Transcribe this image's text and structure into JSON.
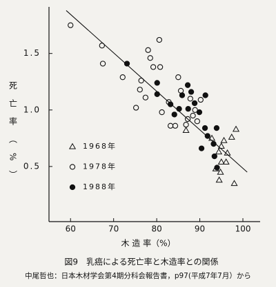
{
  "chart_data": {
    "type": "scatter",
    "xlabel": "木 造 率（%）",
    "ylabel": "死亡率（%）",
    "caption": "図9　乳癌による死亡率と木造率との関係",
    "source": "中尾哲也：日本木材学会第4期分科会報告書，p97(平成7年7月）から",
    "xlim": [
      55,
      104
    ],
    "ylim": [
      0,
      1.9
    ],
    "xticks": [
      60,
      70,
      80,
      90,
      100
    ],
    "yticks": [
      0.5,
      {
        "value": 1,
        "label": "1.0"
      },
      1.5
    ],
    "color": "#111111",
    "trend_line": {
      "x": [
        59,
        101
      ],
      "y": [
        1.88,
        0.45
      ]
    },
    "series": [
      {
        "name": "1968年",
        "marker": "triangle",
        "x": [
          86.8,
          92.8,
          98.4,
          97.4,
          95.0,
          94.4,
          96.4,
          96.1,
          95.0,
          93.7,
          94.5,
          98.0,
          94.8,
          95.6
        ],
        "y": [
          0.82,
          0.75,
          0.83,
          0.76,
          0.68,
          0.63,
          0.62,
          0.54,
          0.54,
          0.48,
          0.38,
          0.35,
          0.45,
          0.73
        ]
      },
      {
        "name": "1978年",
        "marker": "circle-open",
        "x": [
          60,
          67.3,
          67.5,
          72.1,
          78.0,
          78.5,
          79.2,
          80.8,
          80.6,
          76.4,
          76.1,
          77.4,
          75.2,
          85.0,
          85.6,
          82.8,
          81.2,
          83.2,
          84.3,
          86.8,
          87.2,
          88.4,
          88.9,
          89.4,
          90.2,
          87.8
        ],
        "y": [
          1.75,
          1.57,
          1.41,
          1.29,
          1.53,
          1.46,
          1.38,
          1.38,
          1.62,
          1.26,
          1.18,
          1.11,
          1.02,
          1.29,
          1.17,
          1.07,
          0.98,
          0.86,
          0.86,
          0.87,
          0.92,
          0.95,
          1.0,
          0.9,
          1.09,
          1.1
        ]
      },
      {
        "name": "1988年",
        "marker": "circle-filled",
        "x": [
          73.1,
          80.1,
          80.1,
          83.2,
          84.1,
          85.2,
          85.9,
          87.2,
          87.3,
          88.0,
          88.8,
          89.9,
          91.3,
          93.9,
          91.2,
          91.8,
          90.4,
          94.0,
          93.4,
          93.2
        ],
        "y": [
          1.41,
          1.24,
          1.14,
          1.05,
          0.96,
          1.01,
          1.13,
          1.22,
          1.01,
          1.16,
          1.06,
          0.98,
          1.13,
          0.84,
          0.84,
          0.77,
          0.66,
          0.49,
          0.59,
          0.7
        ]
      }
    ]
  }
}
